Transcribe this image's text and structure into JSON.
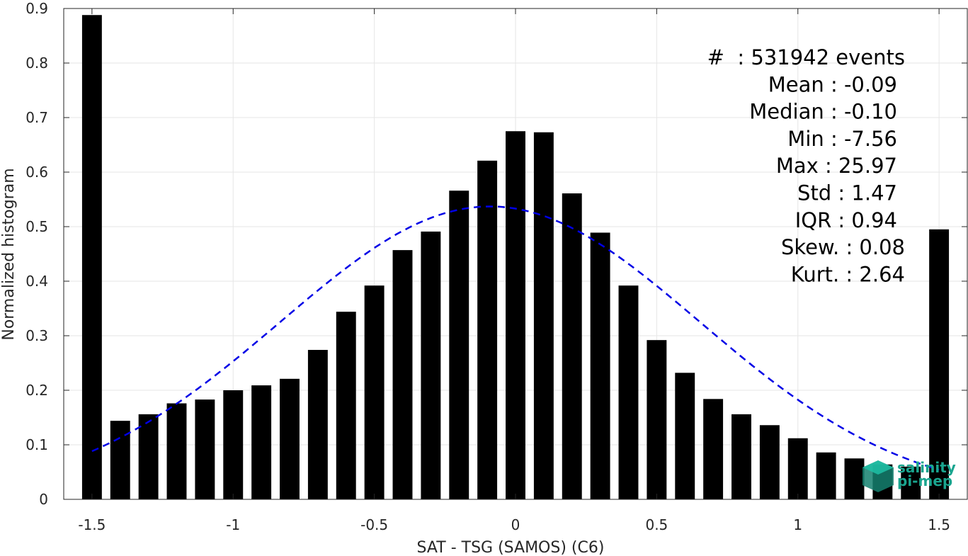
{
  "chart_data": {
    "type": "bar",
    "xlabel": "SAT - TSG (SAMOS) (C6)",
    "ylabel": "Normalized histogram",
    "xlim": [
      -1.6,
      1.6
    ],
    "ylim": [
      0,
      0.9
    ],
    "xticks": [
      -1.5,
      -1,
      -0.5,
      0,
      0.5,
      1,
      1.5
    ],
    "xtick_labels": [
      "-1.5",
      "-1",
      "-0.5",
      "0",
      "0.5",
      "1",
      "1.5"
    ],
    "yticks": [
      0,
      0.1,
      0.2,
      0.3,
      0.4,
      0.5,
      0.6,
      0.7,
      0.8,
      0.9
    ],
    "ytick_labels": [
      "0",
      "0.1",
      "0.2",
      "0.3",
      "0.4",
      "0.5",
      "0.6",
      "0.7",
      "0.8",
      "0.9"
    ],
    "grid": true,
    "bar_color": "#000000",
    "x": [
      -1.5,
      -1.4,
      -1.3,
      -1.2,
      -1.1,
      -1.0,
      -0.9,
      -0.8,
      -0.7,
      -0.6,
      -0.5,
      -0.4,
      -0.3,
      -0.2,
      -0.1,
      0.0,
      0.1,
      0.2,
      0.3,
      0.4,
      0.5,
      0.6,
      0.7,
      0.8,
      0.9,
      1.0,
      1.1,
      1.2,
      1.3,
      1.4,
      1.5
    ],
    "values": [
      0.888,
      0.144,
      0.156,
      0.176,
      0.183,
      0.2,
      0.209,
      0.221,
      0.274,
      0.344,
      0.392,
      0.457,
      0.491,
      0.566,
      0.621,
      0.675,
      0.673,
      0.561,
      0.489,
      0.392,
      0.292,
      0.232,
      0.184,
      0.156,
      0.136,
      0.112,
      0.086,
      0.075,
      0.064,
      0.06,
      0.495
    ],
    "fit_curve": {
      "type": "gaussian",
      "style": "dashed",
      "color": "#0000e6",
      "mean": -0.09,
      "std": 0.742,
      "peak": 0.537,
      "x_range": [
        -1.5,
        1.5
      ]
    },
    "stats": [
      "#  : 531942 events",
      "Mean : -0.09",
      "Median : -0.10",
      "Min : -7.56",
      "Max : 25.97",
      "Std : 1.47",
      "IQR : 0.94",
      "Skew. : 0.08",
      "Kurt. : 2.64"
    ],
    "logo": {
      "line1": "salinity",
      "line2": "pi-mep",
      "color": "#1aa58f"
    }
  }
}
